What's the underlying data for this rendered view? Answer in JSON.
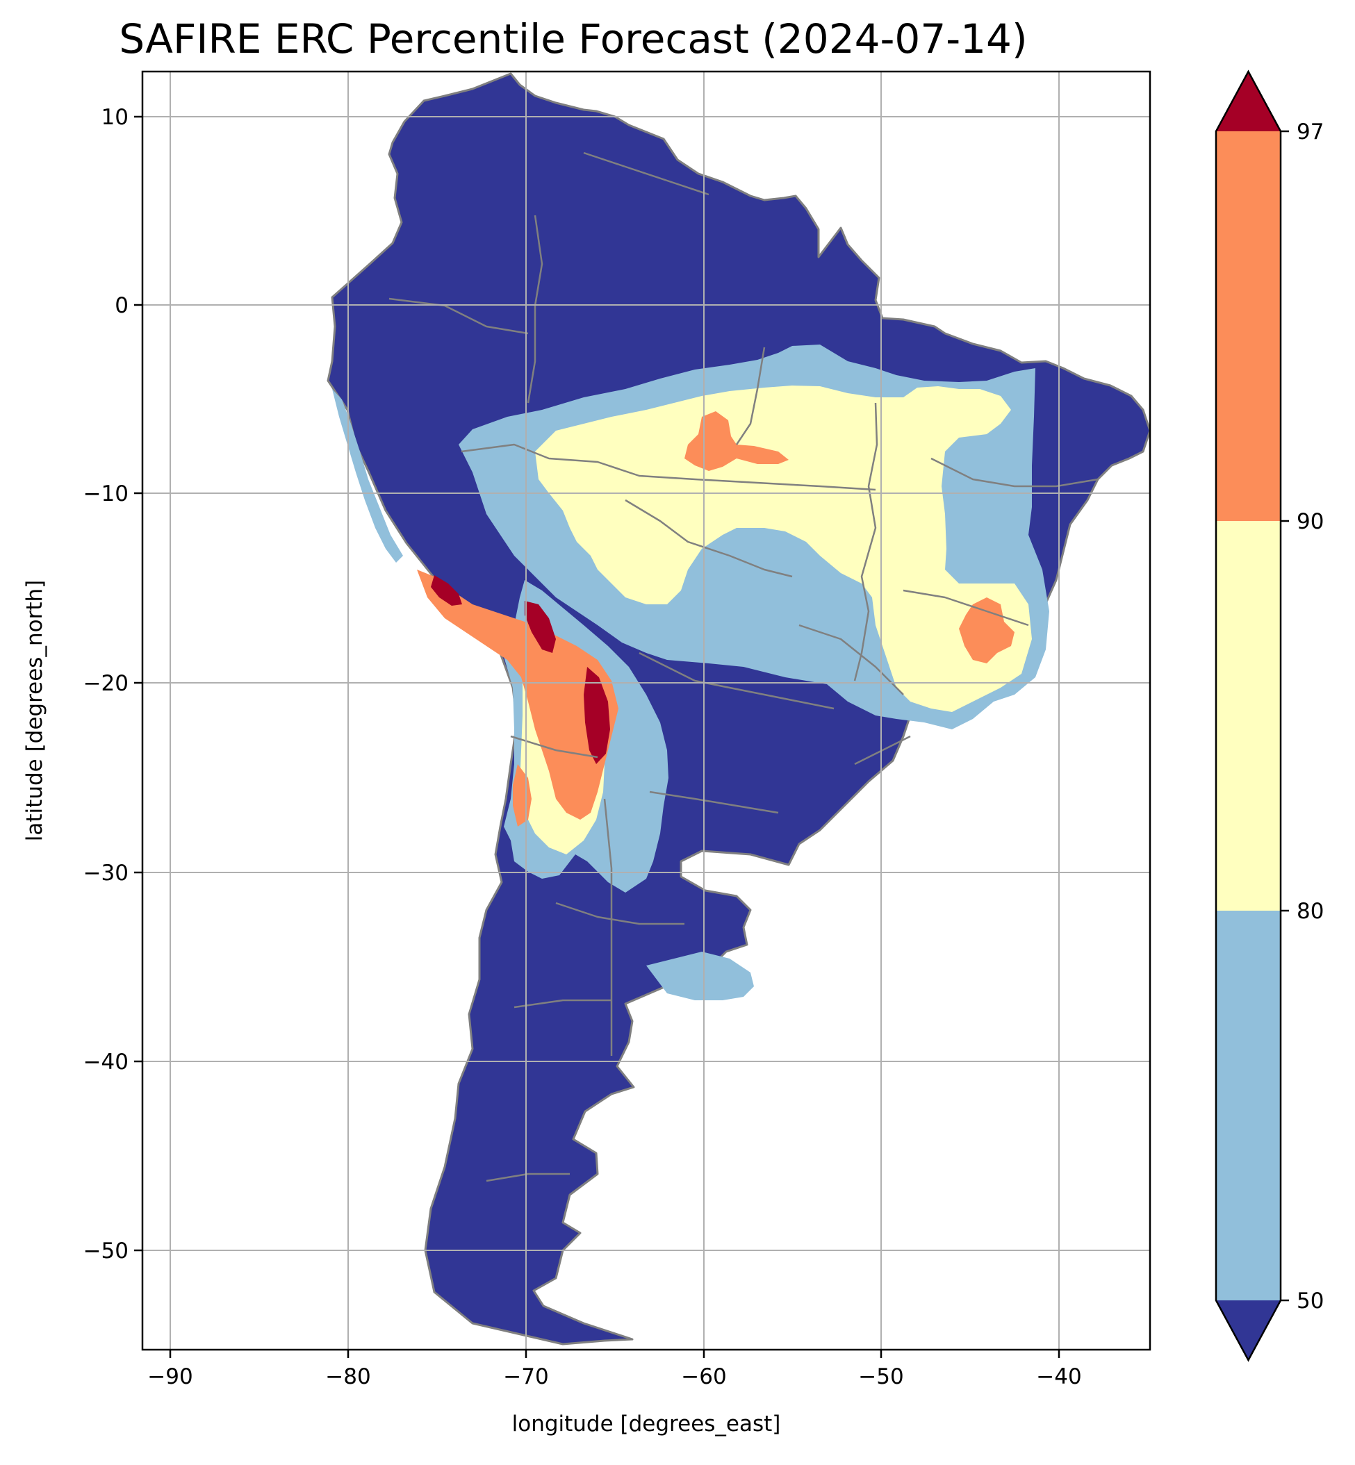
{
  "title": "SAFIRE ERC Percentile Forecast (2024-07-14)",
  "map": {
    "region": "South America",
    "projection": "PlateCarree",
    "xlabel": "longitude [degrees_east]",
    "ylabel": "latitude [degrees_north]",
    "xlim": [
      -91.6,
      -34.9
    ],
    "ylim": [
      -55.8,
      12.3
    ],
    "xticks": [
      -90,
      -80,
      -70,
      -60,
      -50,
      -40
    ],
    "xtick_labels": [
      "−90",
      "−80",
      "−70",
      "−60",
      "−50",
      "−40"
    ],
    "yticks": [
      10,
      0,
      -10,
      -20,
      -30,
      -40,
      -50
    ],
    "ytick_labels": [
      "10",
      "0",
      "−10",
      "−20",
      "−30",
      "−40",
      "−50"
    ],
    "grid": true,
    "border_color": "#808080",
    "colors": {
      "below_50": "#313695",
      "p50_80": "#91bfdb",
      "p80_90": "#ffffbf",
      "p90_97": "#fc8d59",
      "above_97": "#a50026",
      "grid": "#b0b0b0"
    }
  },
  "colorbar": {
    "ticks": [
      "50",
      "80",
      "90",
      "97"
    ],
    "bins": [
      {
        "from": 50,
        "to": 80,
        "color": "#91bfdb"
      },
      {
        "from": 80,
        "to": 90,
        "color": "#ffffbf"
      },
      {
        "from": 90,
        "to": 97,
        "color": "#fc8d59"
      }
    ],
    "extend_low_color": "#313695",
    "extend_high_color": "#a50026"
  }
}
